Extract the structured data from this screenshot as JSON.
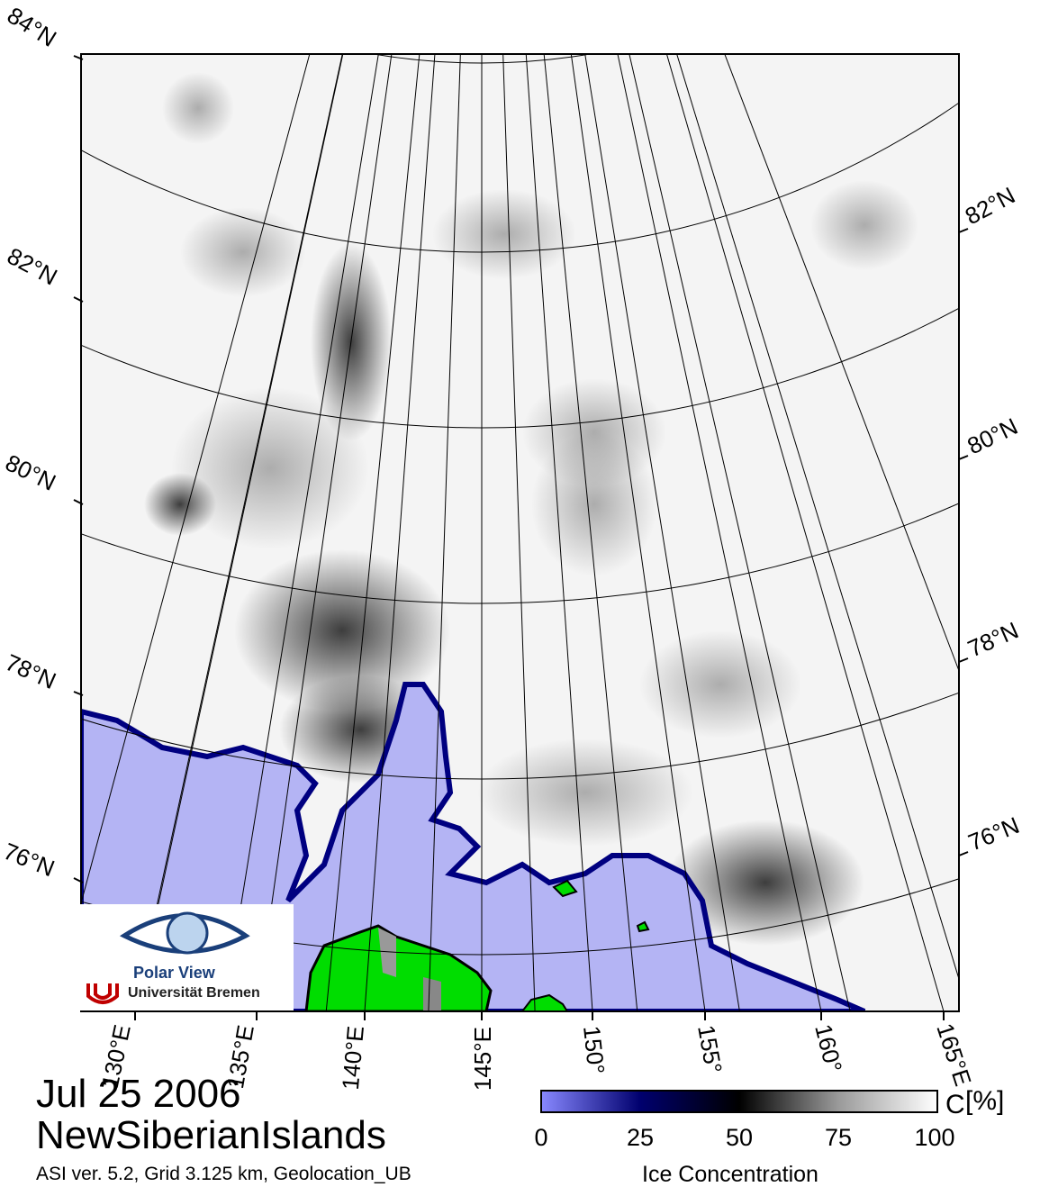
{
  "map": {
    "title_date": "Jul 25 2006",
    "region": "NewSiberianIslands",
    "info": "ASI ver. 5.2,  Grid 3.125 km, Geolocation_UB",
    "latitude_labels_left": [
      "84°N",
      "82°N",
      "80°N",
      "78°N",
      "76°N"
    ],
    "latitude_labels_right": [
      "82°N",
      "80°N",
      "78°N",
      "76°N"
    ],
    "longitude_labels": [
      "130°E",
      "135°E",
      "140°E",
      "145°E",
      "150°",
      "155°",
      "160°",
      "165°E"
    ],
    "colors": {
      "water": "#b4b4f4",
      "land": "#00dd00",
      "ice_edge": "#000080",
      "ice_dark": "#202020"
    }
  },
  "colorbar": {
    "title": "Ice Concentration",
    "unit": "[%]",
    "unit_prefix": "C",
    "ticks": [
      "0",
      "25",
      "50",
      "75",
      "100"
    ],
    "range": [
      0,
      100
    ]
  },
  "logo": {
    "name": "Polar View",
    "institution": "Universität Bremen"
  }
}
